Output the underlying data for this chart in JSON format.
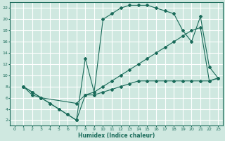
{
  "xlabel": "Humidex (Indice chaleur)",
  "bg_color": "#cfe8e0",
  "grid_color": "#ffffff",
  "line_color": "#1a6b5a",
  "xlim": [
    -0.5,
    23.5
  ],
  "ylim": [
    1,
    23
  ],
  "xticks": [
    0,
    1,
    2,
    3,
    4,
    5,
    6,
    7,
    8,
    9,
    10,
    11,
    12,
    13,
    14,
    15,
    16,
    17,
    18,
    19,
    20,
    21,
    22,
    23
  ],
  "yticks": [
    2,
    4,
    6,
    8,
    10,
    12,
    14,
    16,
    18,
    20,
    22
  ],
  "curve1_x": [
    1,
    2,
    3,
    4,
    5,
    6,
    7,
    8,
    9,
    10,
    11,
    12,
    13,
    14,
    15,
    16,
    17,
    18,
    19,
    20,
    21,
    22,
    23
  ],
  "curve1_y": [
    8,
    7,
    6,
    5,
    4,
    3,
    2,
    13,
    7,
    20,
    21,
    22,
    22.5,
    22.5,
    22.5,
    22,
    21.5,
    21,
    18,
    16,
    20.5,
    11.5,
    9.5
  ],
  "curve2_x": [
    1,
    2,
    3,
    7,
    8,
    9,
    10,
    11,
    12,
    13,
    14,
    15,
    16,
    17,
    18,
    19,
    20,
    21,
    22,
    23
  ],
  "curve2_y": [
    8,
    7,
    6,
    5,
    6.5,
    7,
    8,
    9,
    10,
    11,
    12,
    13,
    14,
    15,
    16,
    17,
    18,
    18.5,
    9,
    9.5
  ],
  "curve3_x": [
    1,
    2,
    3,
    4,
    5,
    6,
    7,
    8,
    9,
    10,
    11,
    12,
    13,
    14,
    15,
    16,
    17,
    18,
    19,
    20,
    21,
    22,
    23
  ],
  "curve3_y": [
    8,
    6.5,
    6,
    5,
    4,
    3,
    2,
    6.5,
    6.5,
    7,
    7.5,
    8,
    8.5,
    9,
    9,
    9,
    9,
    9,
    9,
    9,
    9,
    9,
    9.5
  ]
}
